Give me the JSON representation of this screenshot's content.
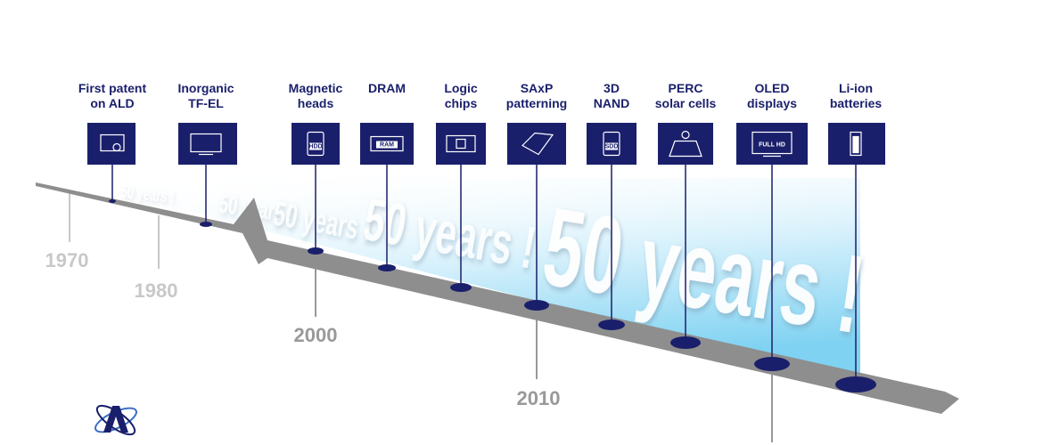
{
  "watermark": "50 years !",
  "milestones": [
    {
      "lines": [
        "First patent",
        "on ALD"
      ],
      "icon": "certificate"
    },
    {
      "lines": [
        "Inorganic",
        "TF-EL"
      ],
      "icon": "screen"
    },
    {
      "lines": [
        "Magnetic",
        "heads"
      ],
      "icon": "hdd",
      "icon_text": "HDD"
    },
    {
      "lines": [
        "DRAM"
      ],
      "icon": "ram",
      "icon_text": "RAM"
    },
    {
      "lines": [
        "Logic",
        "chips"
      ],
      "icon": "chip"
    },
    {
      "lines": [
        "SAxP",
        "patterning"
      ],
      "icon": "wafer"
    },
    {
      "lines": [
        "3D",
        "NAND"
      ],
      "icon": "sdd",
      "icon_text": "SDD"
    },
    {
      "lines": [
        "PERC",
        "solar cells"
      ],
      "icon": "solar"
    },
    {
      "lines": [
        "OLED",
        "displays"
      ],
      "icon": "tv",
      "icon_text": "FULL HD"
    },
    {
      "lines": [
        "Li-ion",
        "batteries"
      ],
      "icon": "battery"
    }
  ],
  "years": [
    "1970",
    "1980",
    "2000",
    "2010"
  ]
}
